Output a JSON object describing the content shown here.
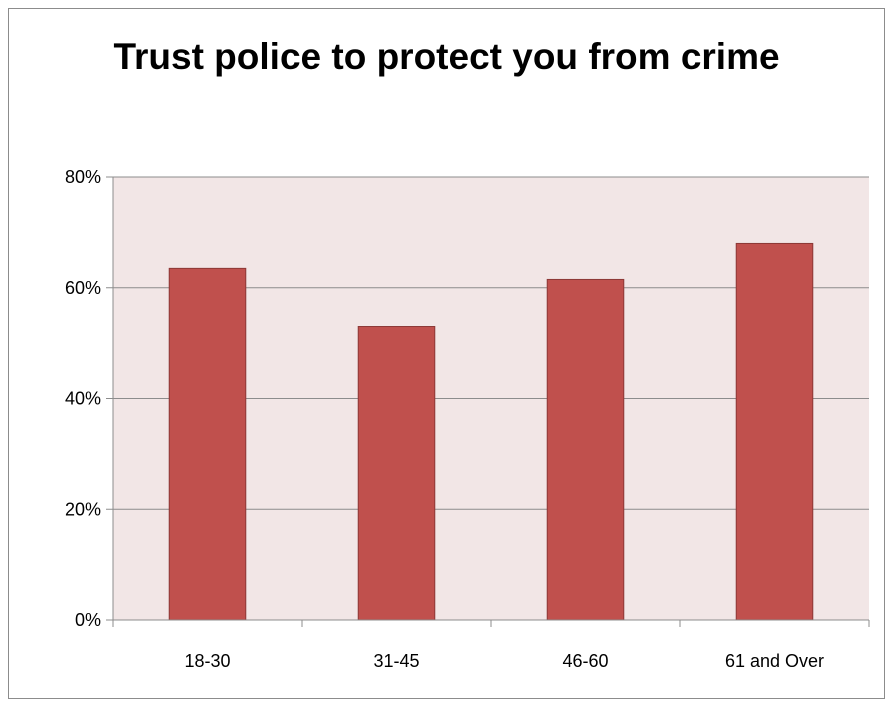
{
  "chart_data": {
    "type": "bar",
    "title": "Trust police to protect you from crime",
    "categories": [
      "18-30",
      "31-45",
      "46-60",
      "61 and Over"
    ],
    "values": [
      63.5,
      53,
      61.5,
      68
    ],
    "ylim": [
      0,
      80
    ],
    "yticks": [
      0,
      20,
      40,
      60,
      80
    ],
    "ytick_labels": [
      "0%",
      "20%",
      "40%",
      "60%",
      "80%"
    ],
    "xlabel": "",
    "ylabel": "",
    "grid": true,
    "legend": "none",
    "colors": {
      "bar_fill": "#c0504d",
      "bar_stroke": "#8c3836",
      "plot_background": "#f2e6e6",
      "gridline": "#8c8c8c"
    }
  }
}
